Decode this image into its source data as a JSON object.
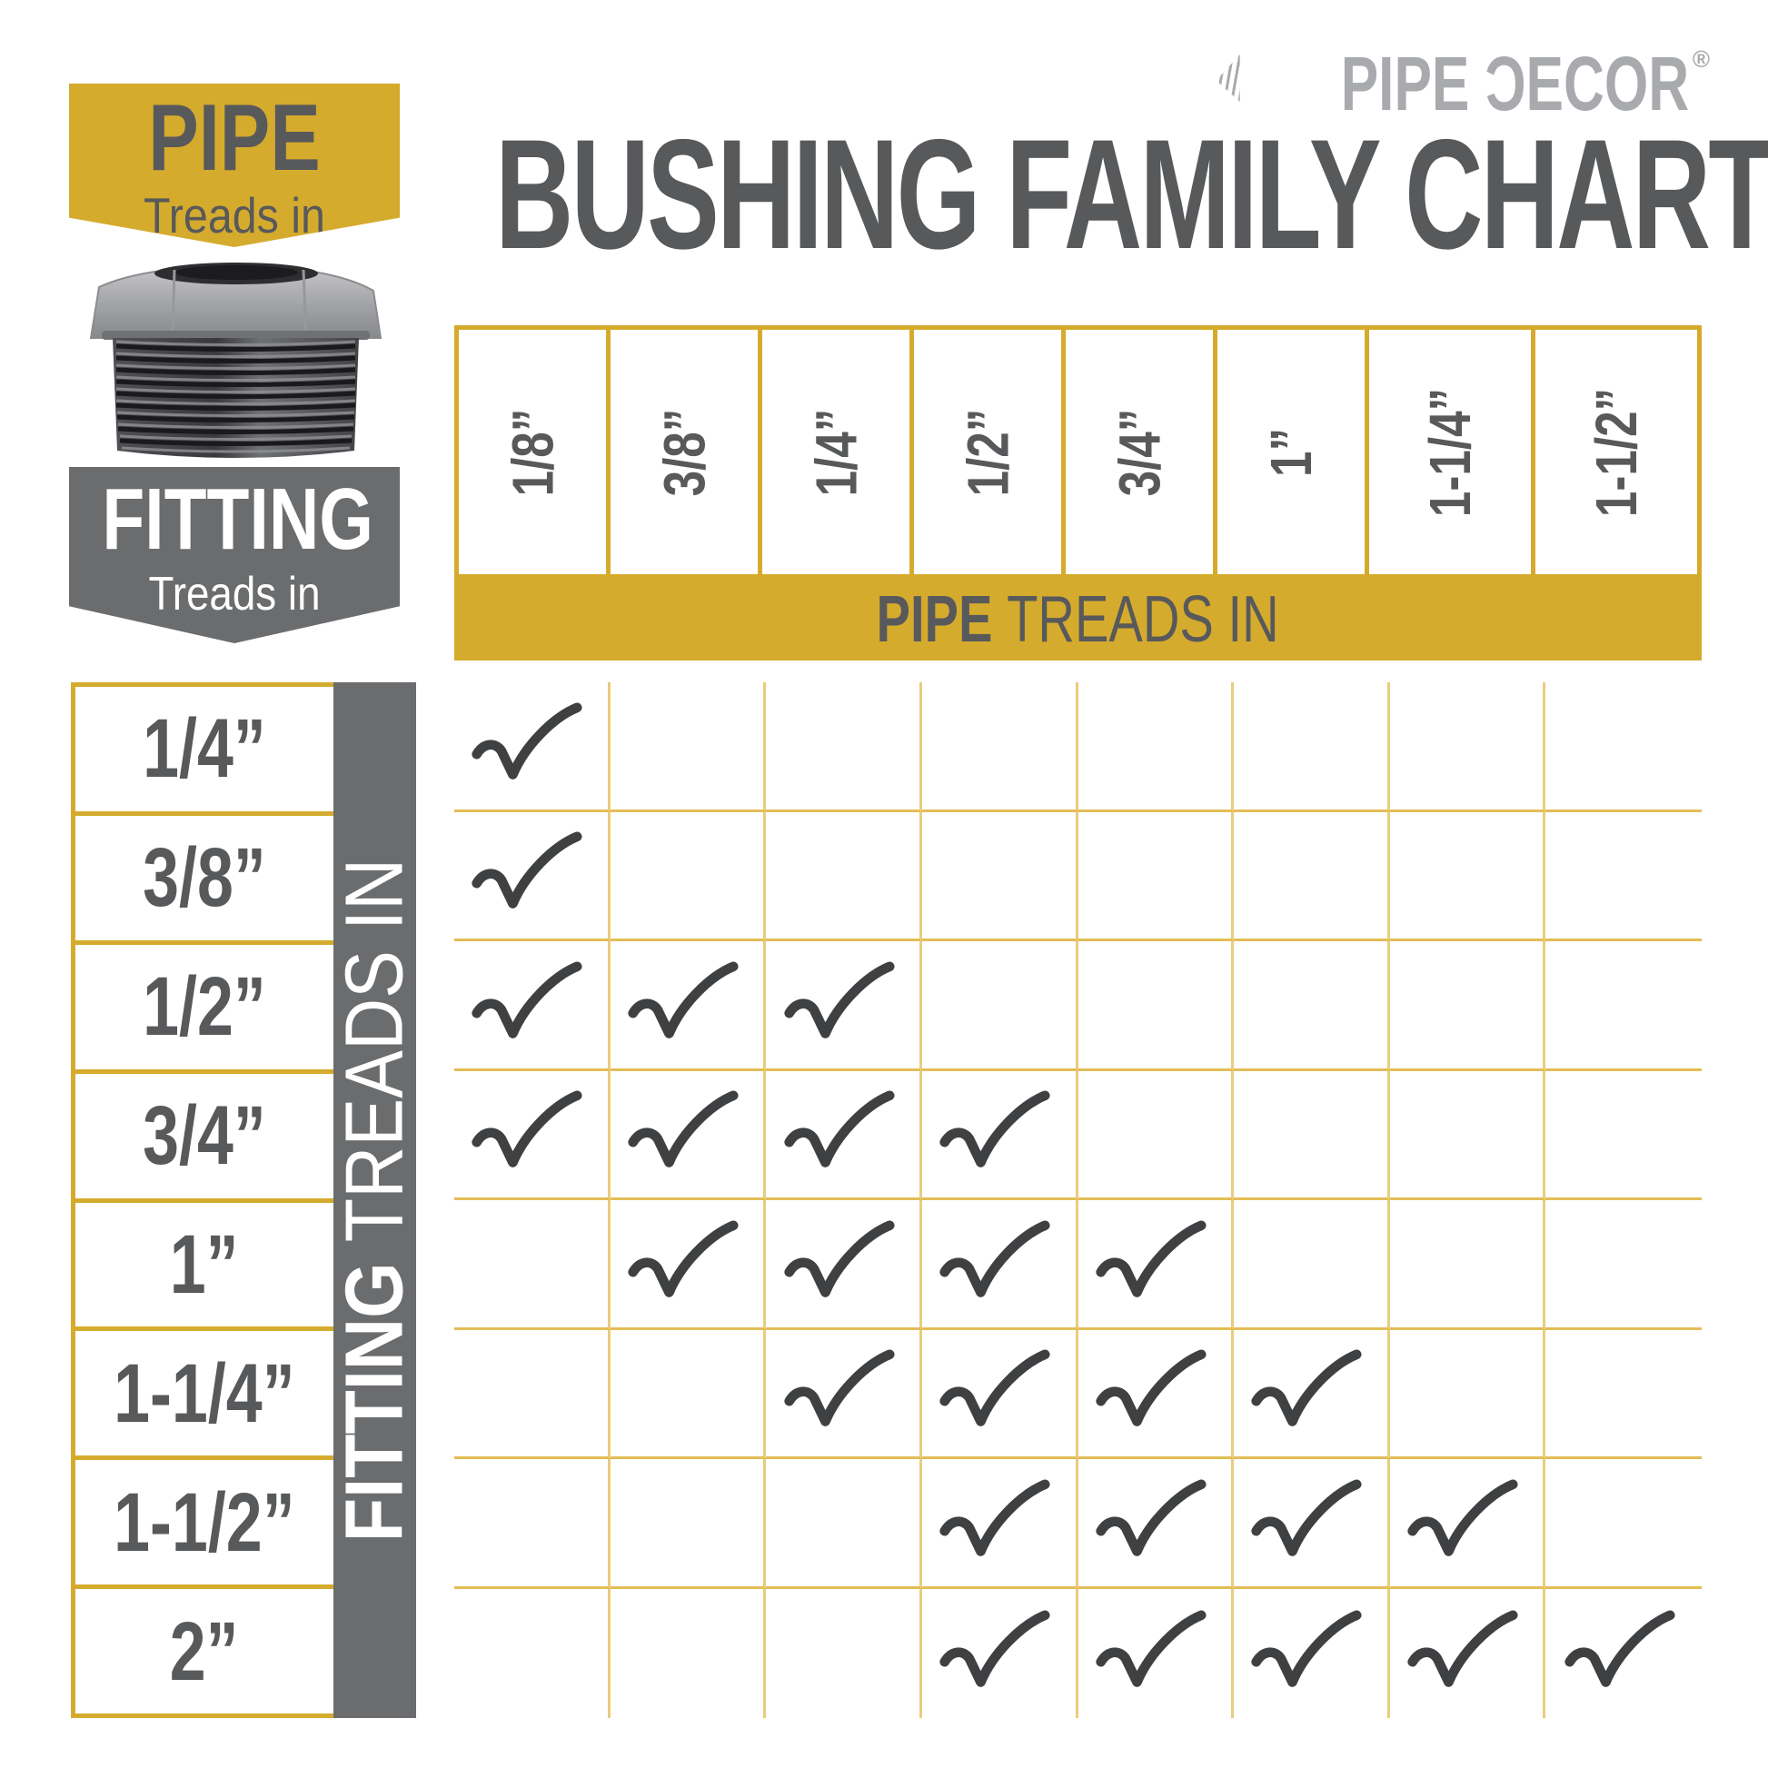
{
  "brand": {
    "logo_text": "PIPE ƆECOR",
    "registered_mark": "®"
  },
  "title": "BUSHING FAMILY CHART",
  "pipe_badge": {
    "title": "PIPE",
    "subtitle": "Treads in"
  },
  "fitting_badge": {
    "title": "FITTING",
    "subtitle": "Treads in"
  },
  "product_image": {
    "description": "black iron hex bushing fitting"
  },
  "pipe_header_bar": {
    "bold_text": "PIPE",
    "regular_text": "TREADS IN"
  },
  "fitting_side_bar": {
    "bold_text": "FITTING",
    "regular_text": "TREADS IN"
  },
  "chart_data": {
    "type": "table",
    "title": "BUSHING FAMILY CHART",
    "column_axis_label": "PIPE TREADS IN",
    "row_axis_label": "FITTING TREADS IN",
    "columns": [
      "1/8”",
      "3/8”",
      "1/4”",
      "1/2”",
      "3/4”",
      "1”",
      "1-1/4”",
      "1-1/2”"
    ],
    "rows": [
      "1/4”",
      "3/8”",
      "1/2”",
      "3/4”",
      "1”",
      "1-1/4”",
      "1-1/2”",
      "2”"
    ],
    "checks": [
      [
        1,
        0,
        0,
        0,
        0,
        0,
        0,
        0
      ],
      [
        1,
        0,
        0,
        0,
        0,
        0,
        0,
        0
      ],
      [
        1,
        1,
        1,
        0,
        0,
        0,
        0,
        0
      ],
      [
        1,
        1,
        1,
        1,
        0,
        0,
        0,
        0
      ],
      [
        0,
        1,
        1,
        1,
        1,
        0,
        0,
        0
      ],
      [
        0,
        0,
        1,
        1,
        1,
        1,
        0,
        0
      ],
      [
        0,
        0,
        0,
        1,
        1,
        1,
        1,
        0
      ],
      [
        0,
        0,
        0,
        1,
        1,
        1,
        1,
        1
      ]
    ]
  },
  "colors": {
    "mustard": "#D5AB2D",
    "dark_gray": "#58595B",
    "mid_gray": "#6B6C6E",
    "logo_gray": "#A8AAAD",
    "check_gray": "#3F4042",
    "grid_line_v": "#E9CD7C",
    "grid_line_h": "#E3BD55"
  }
}
